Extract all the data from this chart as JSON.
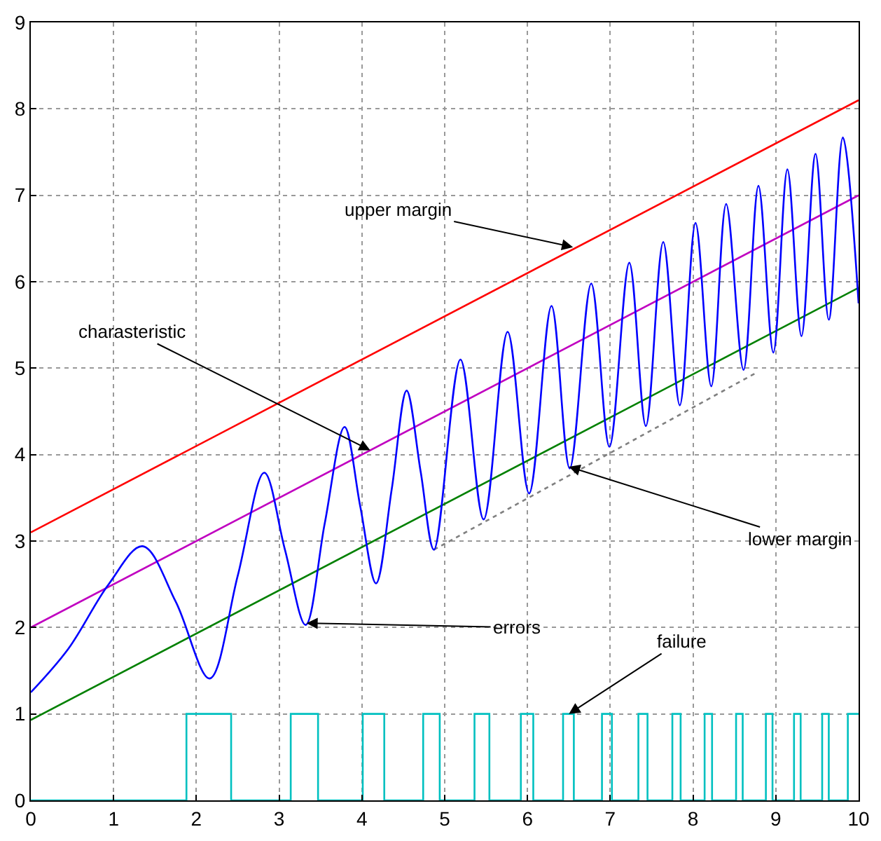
{
  "chart_data": {
    "type": "line",
    "xlim": [
      0,
      10
    ],
    "ylim": [
      0,
      9
    ],
    "xticks": [
      0,
      1,
      2,
      3,
      4,
      5,
      6,
      7,
      8,
      9,
      10
    ],
    "yticks": [
      0,
      1,
      2,
      3,
      4,
      5,
      6,
      7,
      8,
      9
    ],
    "grid": true,
    "marker": "none",
    "series": [
      {
        "color": "#ff0000",
        "x": [
          0,
          10
        ],
        "values": [
          3.1,
          8.1
        ]
      },
      {
        "color": "#c000c0",
        "x": [
          0,
          10
        ],
        "values": [
          2.0,
          7.0
        ]
      },
      {
        "color": "#008000",
        "x": [
          0,
          10
        ],
        "values": [
          0.93,
          5.93
        ]
      },
      {
        "color": "#808080",
        "x": [
          4.87,
          8.75
        ],
        "values": [
          2.9,
          4.94
        ],
        "line_style": "dotted"
      },
      {
        "color": "#0000ff",
        "x": [
          0,
          0.45,
          0.94,
          1.35,
          1.75,
          2.16,
          2.5,
          2.82,
          3.07,
          3.32,
          3.55,
          3.79,
          3.98,
          4.17,
          4.36,
          4.54,
          4.71,
          4.87,
          5.19,
          5.47,
          5.76,
          6.02,
          6.29,
          6.51,
          6.77,
          6.99,
          7.23,
          7.43,
          7.64,
          7.84,
          8.03,
          8.22,
          8.4,
          8.61,
          8.79,
          8.97,
          9.14,
          9.31,
          9.48,
          9.64,
          9.81,
          10
        ],
        "values": [
          1.25,
          1.75,
          2.5,
          2.94,
          2.3,
          1.41,
          2.6,
          3.79,
          2.9,
          2.03,
          3.2,
          4.32,
          3.4,
          2.51,
          3.6,
          4.74,
          3.8,
          2.9,
          5.1,
          3.25,
          5.42,
          3.55,
          5.72,
          3.84,
          5.98,
          4.09,
          6.22,
          4.33,
          6.46,
          4.57,
          6.68,
          4.79,
          6.9,
          4.98,
          7.11,
          5.18,
          7.3,
          5.37,
          7.48,
          5.56,
          7.67,
          5.75
        ]
      },
      {
        "type": "step",
        "color": "#00c0c0",
        "x": [
          0,
          1.88,
          2.42,
          3.14,
          3.47,
          4.01,
          4.27,
          4.74,
          4.94,
          5.36,
          5.54,
          5.92,
          6.07,
          6.43,
          6.56,
          6.9,
          7.02,
          7.34,
          7.45,
          7.75,
          7.85,
          8.14,
          8.23,
          8.52,
          8.6,
          8.88,
          8.96,
          9.22,
          9.3,
          9.56,
          9.64,
          9.87,
          10
        ],
        "values": [
          0,
          1,
          0,
          1,
          0,
          1,
          0,
          1,
          0,
          1,
          0,
          1,
          0,
          1,
          0,
          1,
          0,
          1,
          0,
          1,
          0,
          1,
          0,
          1,
          0,
          1,
          0,
          1,
          0,
          1,
          0,
          1,
          1
        ]
      }
    ],
    "annotations": [
      {
        "text": "upper margin",
        "x": 6.55,
        "y": 6.4
      },
      {
        "text": "charasteristic",
        "x": 4.1,
        "y": 4.05
      },
      {
        "text": "lower margin",
        "x": 6.5,
        "y": 3.86
      },
      {
        "text": "errors",
        "x": 3.33,
        "y": 2.05
      },
      {
        "text": "failure",
        "x": 6.5,
        "y": 1
      }
    ]
  }
}
